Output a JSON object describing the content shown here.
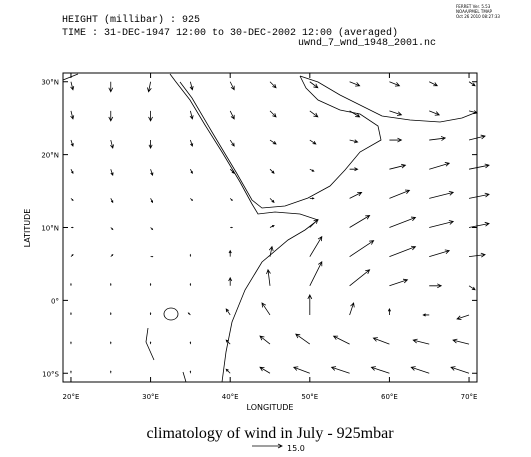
{
  "chart_data": {
    "type": "vector",
    "header": [
      "HEIGHT (millibar) : 925",
      "TIME : 31-DEC-1947 12:00 to 30-DEC-2002 12:00 (averaged)"
    ],
    "dataset": "uwnd_7_wnd_1948_2001.nc",
    "stamp": [
      "FERRET Ver. 5.53",
      "NOAA/PMEL TMAP",
      "Oct 26 2010 08:27:33"
    ],
    "title": "climatology of wind in July - 925mbar",
    "xlabel": "LONGITUDE",
    "ylabel": "LATITUDE",
    "xlim": [
      19,
      71
    ],
    "ylim": [
      -11.2,
      31.2
    ],
    "xticks": [
      {
        "value": 20,
        "label": "20°E"
      },
      {
        "value": 30,
        "label": "30°E"
      },
      {
        "value": 40,
        "label": "40°E"
      },
      {
        "value": 50,
        "label": "50°E"
      },
      {
        "value": 60,
        "label": "60°E"
      },
      {
        "value": 70,
        "label": "70°E"
      }
    ],
    "yticks": [
      {
        "value": -10,
        "label": "10°S"
      },
      {
        "value": 0,
        "label": "0°"
      },
      {
        "value": 10,
        "label": "10°N"
      },
      {
        "value": 20,
        "label": "20°N"
      },
      {
        "value": 30,
        "label": "30°N"
      }
    ],
    "x": [
      20,
      25,
      30,
      35,
      40,
      45,
      50,
      55,
      60,
      65,
      70
    ],
    "y": [
      30,
      26,
      22,
      18,
      14,
      10,
      6,
      2,
      -2,
      -6,
      -10
    ],
    "u": [
      [
        1,
        0,
        -1,
        1,
        2,
        3,
        4,
        5,
        5,
        4,
        3
      ],
      [
        1,
        0,
        0,
        1,
        2,
        3,
        4,
        5,
        6,
        5,
        4
      ],
      [
        1,
        1,
        0,
        1,
        2,
        3,
        3,
        4,
        6,
        8,
        8
      ],
      [
        1,
        1,
        1,
        1,
        2,
        2,
        2,
        4,
        8,
        10,
        10
      ],
      [
        1,
        1,
        1,
        1,
        1,
        2,
        2,
        6,
        10,
        12,
        10
      ],
      [
        1,
        1,
        1,
        0,
        1,
        2,
        4,
        10,
        13,
        12,
        10
      ],
      [
        1,
        1,
        1,
        0,
        0,
        1,
        6,
        12,
        13,
        10,
        8
      ],
      [
        0,
        0,
        0,
        0,
        0,
        -1,
        6,
        10,
        9,
        6,
        3
      ],
      [
        0,
        0,
        0,
        -1,
        -2,
        -4,
        0,
        2,
        0,
        -3,
        -6
      ],
      [
        0,
        0,
        0,
        0,
        -2,
        -5,
        -7,
        -8,
        -8,
        -8,
        -8
      ],
      [
        0,
        0,
        0,
        0,
        -2,
        -5,
        -8,
        -9,
        -9,
        -9,
        -9
      ]
    ],
    "v": [
      [
        -4,
        -5,
        -5,
        -4,
        -4,
        -3,
        -3,
        -2,
        -2,
        -2,
        -2
      ],
      [
        -4,
        -5,
        -5,
        -4,
        -4,
        -3,
        -3,
        -3,
        -2,
        -2,
        -1
      ],
      [
        -3,
        -4,
        -4,
        -3,
        -3,
        -2,
        -2,
        -1,
        0,
        1,
        2
      ],
      [
        -2,
        -3,
        -3,
        -2,
        -2,
        -2,
        -1,
        0,
        2,
        3,
        2
      ],
      [
        -1,
        -2,
        -2,
        -1,
        -1,
        -2,
        0,
        3,
        4,
        3,
        2
      ],
      [
        0,
        -1,
        -1,
        0,
        0,
        1,
        4,
        6,
        5,
        3,
        2
      ],
      [
        1,
        1,
        0,
        1,
        3,
        5,
        10,
        8,
        5,
        3,
        1
      ],
      [
        1,
        1,
        1,
        1,
        4,
        8,
        12,
        8,
        3,
        0,
        -2
      ],
      [
        1,
        1,
        1,
        1,
        3,
        6,
        10,
        6,
        3,
        0,
        -2
      ],
      [
        1,
        1,
        1,
        1,
        2,
        4,
        5,
        4,
        3,
        2,
        2
      ],
      [
        1,
        1,
        0,
        1,
        2,
        3,
        3,
        3,
        3,
        3,
        3
      ]
    ],
    "reference": {
      "value": 15,
      "label": "15.0"
    },
    "color": "#000000"
  }
}
